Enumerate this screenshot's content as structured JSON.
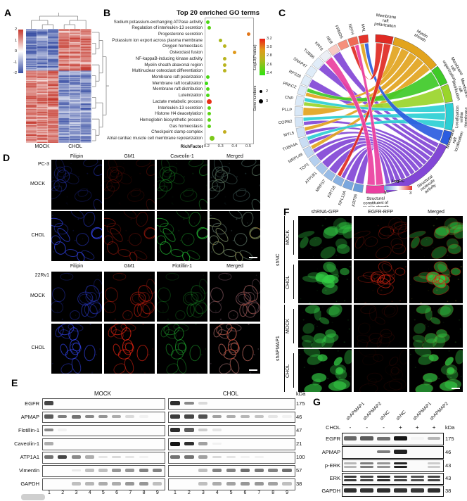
{
  "panels": {
    "a": "A",
    "b": "B",
    "c": "C",
    "d": "D",
    "e": "E",
    "f": "F",
    "g": "G"
  },
  "chart_data": [
    {
      "type": "heatmap",
      "title": "Hierarchically clustered expression heatmap",
      "group_labels": [
        "MOCK",
        "CHOL"
      ],
      "columns_per_group": 3,
      "colorbar_ticks": [
        "2",
        "1",
        "0",
        "-1",
        "-2"
      ],
      "colors": {
        "pos": "#c5372c",
        "neg": "#3a50a5"
      },
      "blocks": [
        {
          "frac": 0.36,
          "mock": -1.35,
          "chol": 1.3
        },
        {
          "frac": 0.64,
          "mock": 1.2,
          "chol": -1.25
        }
      ]
    },
    {
      "type": "scatter",
      "title": "Top 20 enriched GO terms",
      "xlabel": "RichFactor",
      "x_ticks": [
        "0.2",
        "0.3",
        "0.4",
        "0.5"
      ],
      "x_range": [
        0.185,
        0.53
      ],
      "color_legend": {
        "label": "-Log10(Pvalue)",
        "ticks": [
          "3.2",
          "3.0",
          "2.8",
          "2.6",
          "2.4"
        ]
      },
      "size_legend": {
        "label": "Gene numbers",
        "sizes": [
          "2",
          "3"
        ]
      },
      "points": [
        {
          "term": "Sodium:potassium-exchanging ATPase activity",
          "rich": 0.21,
          "logp": 2.45,
          "genes": 2
        },
        {
          "term": "Regulation of interleukin-13 secretion",
          "rich": 0.22,
          "logp": 2.5,
          "genes": 2
        },
        {
          "term": "Progesterone secretion",
          "rich": 0.5,
          "logp": 3.1,
          "genes": 2
        },
        {
          "term": "Potassium ion export across plasma membrane",
          "rich": 0.3,
          "logp": 2.75,
          "genes": 2
        },
        {
          "term": "Oxygen homeostasis",
          "rich": 0.33,
          "logp": 2.8,
          "genes": 2
        },
        {
          "term": "Osteoclast fusion",
          "rich": 0.4,
          "logp": 3.0,
          "genes": 2
        },
        {
          "term": "NF-kappaB-inducing kinase activity",
          "rich": 0.33,
          "logp": 2.8,
          "genes": 2
        },
        {
          "term": "Myelin sheath abaxonal region",
          "rich": 0.33,
          "logp": 2.8,
          "genes": 2
        },
        {
          "term": "Multinuclear osteoclast differentiation",
          "rich": 0.33,
          "logp": 2.8,
          "genes": 2
        },
        {
          "term": "Membrane raft polarization",
          "rich": 0.21,
          "logp": 2.45,
          "genes": 2
        },
        {
          "term": "Membrane raft localization",
          "rich": 0.2,
          "logp": 2.4,
          "genes": 2
        },
        {
          "term": "Membrane raft distribution",
          "rich": 0.21,
          "logp": 2.45,
          "genes": 2
        },
        {
          "term": "Luteinization",
          "rich": 0.21,
          "logp": 2.45,
          "genes": 2
        },
        {
          "term": "Lactate metabolic process",
          "rich": 0.22,
          "logp": 3.3,
          "genes": 3
        },
        {
          "term": "Interleukin-13 secretion",
          "rich": 0.22,
          "logp": 2.5,
          "genes": 2
        },
        {
          "term": "Histone H4 deacetylation",
          "rich": 0.22,
          "logp": 2.5,
          "genes": 2
        },
        {
          "term": "Hemoglobin biosynthetic process",
          "rich": 0.22,
          "logp": 2.5,
          "genes": 2
        },
        {
          "term": "Gas homeostasis",
          "rich": 0.22,
          "logp": 2.5,
          "genes": 2
        },
        {
          "term": "Checkpoint clamp complex",
          "rich": 0.33,
          "logp": 2.85,
          "genes": 2
        },
        {
          "term": "Atrial cardiac muscle cell membrane repolarization",
          "rich": 0.24,
          "logp": 2.6,
          "genes": 3
        }
      ]
    },
    {
      "type": "chord",
      "logfc_legend": {
        "label": "LogFC",
        "min": "-3",
        "max": "3"
      },
      "categories": [
        {
          "name": "Membrane raft polarization",
          "lines": [
            "Membrane",
            "raft",
            "polarization"
          ],
          "color": "#e02a23",
          "a0": 1,
          "a1": 14,
          "la": 7,
          "lr": 132
        },
        {
          "name": "Myelin sheath",
          "lines": [
            "Myelin",
            "sheath"
          ],
          "color": "#e2a41e",
          "a0": 15,
          "a1": 52,
          "la": 31,
          "lr": 128
        },
        {
          "name": "Membrane raft organization",
          "lines": [
            "Membrane",
            "raft",
            "organization"
          ],
          "color": "#3fca28",
          "a0": 53,
          "a1": 67,
          "la": 60,
          "lr": 128
        },
        {
          "name": "Membrane raft distribution",
          "lines": [
            "Membrane",
            "raft",
            "distribution"
          ],
          "color": "#9ad52a",
          "a0": 68,
          "a1": 81,
          "la": 74,
          "lr": 126
        },
        {
          "name": "Localization within membrane",
          "lines": [
            "Localization",
            "within",
            "membrane"
          ],
          "color": "#2ccfd4",
          "a0": 82,
          "a1": 102,
          "la": 92,
          "lr": 126
        },
        {
          "name": "Membrane raft localization",
          "lines": [
            "Membrane",
            "raft",
            "localization"
          ],
          "color": "#2b5ce0",
          "a0": 103,
          "a1": 113,
          "la": 108,
          "lr": 122
        },
        {
          "name": "Structural molecule activity",
          "lines": [
            "Structural",
            "molecule",
            "activity"
          ],
          "color": "#8247d6",
          "a0": 114,
          "a1": 171,
          "la": 143,
          "lr": 128
        },
        {
          "name": "Structural constituent of myelin sheath",
          "lines": [
            "Structural",
            "constituent of",
            "myelin sheath"
          ],
          "color": "#ea3fa0",
          "a0": 172,
          "a1": 186,
          "la": 179,
          "lr": 128
        }
      ],
      "genes": [
        {
          "name": "KRT86",
          "color": "#6b9cda"
        },
        {
          "name": "RPL13A",
          "color": "#7aa7de"
        },
        {
          "name": "KRT18",
          "color": "#88b1e2"
        },
        {
          "name": "MRPS7",
          "color": "#98bce6"
        },
        {
          "name": "ATP1B1",
          "color": "#a6c6ea"
        },
        {
          "name": "TCP1",
          "color": "#b4cfee"
        },
        {
          "name": "MRPL49",
          "color": "#c0d7f1"
        },
        {
          "name": "TUBA4A",
          "color": "#c9ddf3"
        },
        {
          "name": "MYL5",
          "color": "#cfe1f4"
        },
        {
          "name": "COPB2",
          "color": "#d4e4f5"
        },
        {
          "name": "PLLP",
          "color": "#d8e7f6"
        },
        {
          "name": "CNP",
          "color": "#dbe9f7"
        },
        {
          "name": "PRKCZ",
          "color": "#ddeaf7"
        },
        {
          "name": "RPS28",
          "color": "#deebf7"
        },
        {
          "name": "SNAP47",
          "color": "#dfecf8"
        },
        {
          "name": "TUBB6",
          "color": "#e0ecf8"
        },
        {
          "name": "KRT8",
          "color": "#eceff5"
        },
        {
          "name": "NEB",
          "color": "#f8c9c2"
        },
        {
          "name": "FRMD5",
          "color": "#f5907c"
        },
        {
          "name": "NEFH",
          "color": "#ef6a55"
        },
        {
          "name": "MAL",
          "color": "#e3342b"
        }
      ],
      "links": [
        {
          "gene": "NEB",
          "cat": 6
        },
        {
          "gene": "TUBB6",
          "cat": 6
        },
        {
          "gene": "RPS28",
          "cat": 6
        },
        {
          "gene": "COPB2",
          "cat": 6
        },
        {
          "gene": "MYL5",
          "cat": 6
        },
        {
          "gene": "TUBA4A",
          "cat": 6
        },
        {
          "gene": "MRPL49",
          "cat": 6
        },
        {
          "gene": "TCP1",
          "cat": 6
        },
        {
          "gene": "ATP1B1",
          "cat": 6
        },
        {
          "gene": "MRPS7",
          "cat": 6
        },
        {
          "gene": "KRT18",
          "cat": 6
        },
        {
          "gene": "RPL13A",
          "cat": 6
        },
        {
          "gene": "KRT86",
          "cat": 6
        },
        {
          "gene": "MAL",
          "cat": 1
        },
        {
          "gene": "PRKCZ",
          "cat": 1
        },
        {
          "gene": "PLLP",
          "cat": 1
        },
        {
          "gene": "MYL5",
          "cat": 1
        },
        {
          "gene": "MRPL49",
          "cat": 1
        },
        {
          "gene": "PRKCZ",
          "cat": 2
        },
        {
          "gene": "CNP",
          "cat": 3
        },
        {
          "gene": "CNP",
          "cat": 4
        },
        {
          "gene": "COPB2",
          "cat": 4
        },
        {
          "gene": "TUBA4A",
          "cat": 4
        },
        {
          "gene": "MAL",
          "cat": 5
        },
        {
          "gene": "NEFH",
          "cat": 0
        },
        {
          "gene": "KRT18",
          "cat": 0
        },
        {
          "gene": "NEFH",
          "cat": 7
        },
        {
          "gene": "KRT8",
          "cat": 7
        }
      ]
    }
  ],
  "microscopy_d": {
    "block1": {
      "cell_line": "PC-3",
      "columns": [
        "Filipin",
        "GM1",
        "Caveolin-1",
        "Merged"
      ],
      "rows": [
        "MOCK",
        "CHOL"
      ]
    },
    "block2": {
      "cell_line": "22Rv1",
      "columns": [
        "Filipin",
        "GM1",
        "Flotillin-1",
        "Merged"
      ],
      "rows": [
        "MOCK",
        "CHOL"
      ]
    },
    "channel_colors": {
      "blue": "#3344ee",
      "red": "#dd2211",
      "green": "#22bb33"
    },
    "rows": [
      {
        "row": "MOCK",
        "blue": 0.5,
        "red": 0.28,
        "green": 0.5,
        "scalebar": false
      },
      {
        "row": "CHOL",
        "blue": 0.95,
        "red": 0.55,
        "green": 0.9,
        "scalebar": true
      },
      {
        "row": "MOCK",
        "blue": 0.6,
        "red": 0.65,
        "green": 0.4,
        "scalebar": false
      },
      {
        "row": "CHOL",
        "blue": 0.9,
        "red": 0.95,
        "green": 0.65,
        "scalebar": true
      }
    ]
  },
  "microscopy_f": {
    "columns": [
      "shRNA-GFP",
      "EGFR-RFP",
      "Merged"
    ],
    "groups": [
      {
        "name": "shNC",
        "rows": [
          "MOCK",
          "CHOL"
        ]
      },
      {
        "name": "shAPMAP1",
        "rows": [
          "MOCK",
          "CHOL"
        ]
      }
    ],
    "channel_colors": {
      "green": "#33cc44",
      "red": "#cc2211"
    },
    "rows": [
      {
        "green": 0.6,
        "red": 0.35,
        "scalebar": false
      },
      {
        "green": 0.95,
        "red": 0.9,
        "scalebar": false
      },
      {
        "green": 0.65,
        "red": 0.15,
        "scalebar": false
      },
      {
        "green": 0.9,
        "red": 0.12,
        "scalebar": true
      }
    ]
  },
  "blot_e": {
    "group_labels": [
      "MOCK",
      "CHOL"
    ],
    "kda_label": "kDa",
    "lanes": [
      "1",
      "2",
      "3",
      "4",
      "5",
      "6",
      "7",
      "8",
      "9"
    ],
    "rows": [
      {
        "name": "EGFR",
        "kda": "175",
        "mock": [
          0.8,
          0,
          0,
          0,
          0,
          0,
          0,
          0,
          0
        ],
        "chol": [
          0.9,
          0.5,
          0.15,
          0,
          0,
          0,
          0,
          0,
          0
        ]
      },
      {
        "name": "APMAP",
        "kda": "46",
        "mock": [
          0.7,
          0.55,
          0.6,
          0.5,
          0.45,
          0.35,
          0.15,
          0.05,
          0
        ],
        "chol": [
          0.85,
          0.8,
          0.75,
          0.4,
          0.35,
          0.3,
          0.25,
          0.1,
          0.05
        ]
      },
      {
        "name": "Flotillin-1",
        "kda": "47",
        "mock": [
          0.5,
          0.05,
          0,
          0,
          0,
          0,
          0,
          0,
          0
        ],
        "chol": [
          0.9,
          0.7,
          0.2,
          0.1,
          0,
          0,
          0,
          0,
          0
        ]
      },
      {
        "name": "Caveolin-1",
        "kda": "21",
        "mock": [
          0.35,
          0,
          0,
          0,
          0,
          0,
          0,
          0,
          0
        ],
        "chol": [
          1,
          0.9,
          0.4,
          0.05,
          0,
          0,
          0,
          0,
          0
        ]
      },
      {
        "name": "ATP1A1",
        "kda": "100",
        "mock": [
          0.6,
          0.8,
          0.5,
          0.35,
          0.1,
          0.15,
          0.1,
          0.05,
          0
        ],
        "chol": [
          0.6,
          0.6,
          0.4,
          0.15,
          0.1,
          0.05,
          0.05,
          0,
          0
        ]
      },
      {
        "name": "Vimentin",
        "kda": "57",
        "mock": [
          0,
          0,
          0.1,
          0.3,
          0.3,
          0.5,
          0.5,
          0.6,
          0.6
        ],
        "chol": [
          0,
          0,
          0.3,
          0.6,
          0.6,
          0.7,
          0.65,
          0.6,
          0.7
        ]
      },
      {
        "name": "GAPDH",
        "kda": "38",
        "mock": [
          0,
          0,
          0.3,
          0.35,
          0.4,
          0.4,
          0.5,
          0.5,
          0.3
        ],
        "chol": [
          0,
          0,
          0.3,
          0.4,
          0.45,
          0.5,
          0.5,
          0.45,
          0.3
        ]
      }
    ]
  },
  "blot_g": {
    "chol_label": "CHOL",
    "kda_label": "kDa",
    "lane_labels": [
      "shAPMAP1",
      "shAPMAP2",
      "shNC",
      "shNC",
      "shAPMAP1",
      "shAPMAP2"
    ],
    "chol_signs": [
      "-",
      "-",
      "-",
      "+",
      "+",
      "+"
    ],
    "rows": [
      {
        "name": "EGFR",
        "kda": "175",
        "double": false,
        "bands": [
          0.65,
          0.7,
          0.6,
          1,
          0.03,
          0.3
        ]
      },
      {
        "name": "APMAP",
        "kda": "46",
        "double": false,
        "bands": [
          0,
          0,
          0.55,
          0.95,
          0,
          0
        ]
      },
      {
        "name": "p-ERK",
        "kda": "43",
        "double": true,
        "bands": [
          0.3,
          0.55,
          0.45,
          0.95,
          0.02,
          0.2
        ]
      },
      {
        "name": "ERK",
        "kda": "43",
        "double": true,
        "bands": [
          0.85,
          0.8,
          0.9,
          0.8,
          0.75,
          0.8
        ]
      },
      {
        "name": "GAPDH",
        "kda": "38",
        "double": false,
        "bands": [
          0.9,
          0.88,
          0.9,
          0.88,
          0.86,
          0.9
        ]
      }
    ]
  }
}
